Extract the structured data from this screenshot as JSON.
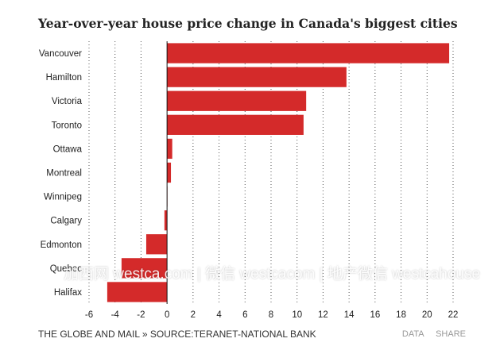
{
  "title": "Year-over-year house price change in Canada's biggest cities",
  "footer": {
    "source": "THE GLOBE AND MAIL » SOURCE:TERANET-NATIONAL BANK",
    "data_link": "DATA",
    "share_link": "SHARE"
  },
  "watermark": "加西网 westca.com | 微信 westcacom | 地产微信 westcahouse",
  "colors": {
    "bar": "#d42a2a",
    "text": "#222222",
    "grid": "#555555"
  },
  "chart_data": {
    "type": "bar",
    "orientation": "horizontal",
    "title": "Year-over-year house price change in Canada's biggest cities",
    "categories": [
      "Vancouver",
      "Hamilton",
      "Victoria",
      "Toronto",
      "Ottawa",
      "Montreal",
      "Winnipeg",
      "Calgary",
      "Edmonton",
      "Quebec",
      "Halifax"
    ],
    "values": [
      21.7,
      13.8,
      10.7,
      10.5,
      0.4,
      0.3,
      0.0,
      -0.2,
      -1.6,
      -3.5,
      -4.6
    ],
    "xlim": [
      -6,
      22
    ],
    "xticks": [
      -6,
      -4,
      -2,
      0,
      2,
      4,
      6,
      8,
      10,
      12,
      14,
      16,
      18,
      20,
      22
    ],
    "grid": "vertical dotted",
    "xlabel": "",
    "ylabel": ""
  }
}
